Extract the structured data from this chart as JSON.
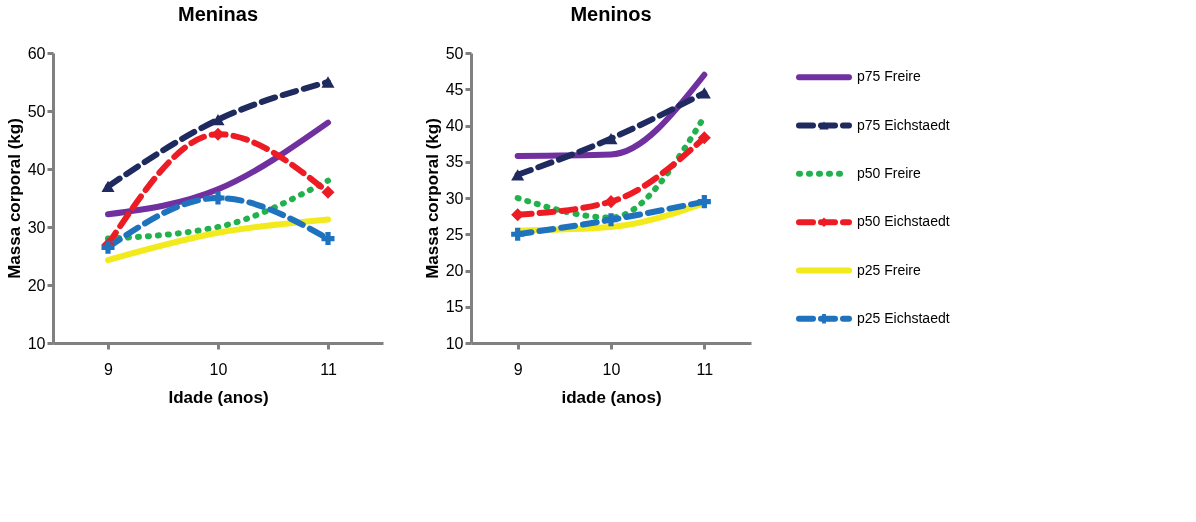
{
  "chart_data": [
    {
      "type": "line",
      "title": "Meninas",
      "xlabel": "Idade (anos)",
      "ylabel": "Massa corporal (kg)",
      "categories": [
        "9",
        "10",
        "11"
      ],
      "ylim": [
        10,
        60
      ],
      "yticks": [
        10,
        20,
        30,
        40,
        50,
        60
      ],
      "grid": false,
      "series": [
        {
          "color": "#7030a0",
          "line_style": "solid",
          "marker": "none",
          "values": [
            32.2,
            36.5,
            48
          ]
        },
        {
          "color": "#1f2a5e",
          "line_style": "dashed",
          "marker": "triangle",
          "values": [
            37,
            48.5,
            55
          ]
        },
        {
          "color": "#22b14c",
          "line_style": "dotted",
          "marker": "none",
          "values": [
            28,
            30,
            38
          ]
        },
        {
          "color": "#ed1c24",
          "line_style": "dashed",
          "marker": "diamond",
          "values": [
            27,
            46,
            36
          ]
        },
        {
          "color": "#f2ea1d",
          "line_style": "solid",
          "marker": "none",
          "values": [
            24.3,
            29,
            31.3
          ]
        },
        {
          "color": "#1f72be",
          "line_style": "dashed",
          "marker": "cross",
          "values": [
            26.5,
            35,
            28
          ]
        }
      ]
    },
    {
      "type": "line",
      "title": "Meninos",
      "xlabel": "idade (anos)",
      "ylabel": "Massa corporal (kg)",
      "categories": [
        "9",
        "10",
        "11"
      ],
      "ylim": [
        10,
        50
      ],
      "yticks": [
        10,
        15,
        20,
        25,
        30,
        35,
        40,
        45,
        50
      ],
      "grid": false,
      "legend": "right",
      "series": [
        {
          "name": "p75 Freire",
          "color": "#7030a0",
          "line_style": "solid",
          "marker": "none",
          "values": [
            35.8,
            36,
            47
          ]
        },
        {
          "name": "p75 Eichstaedt",
          "color": "#1f2a5e",
          "line_style": "dashed",
          "marker": "triangle",
          "values": [
            33.2,
            38.2,
            44.5
          ]
        },
        {
          "name": "p50 Freire",
          "color": "#22b14c",
          "line_style": "dotted",
          "marker": "none",
          "values": [
            30,
            27.3,
            41.2
          ]
        },
        {
          "name": "p50 Eichstaedt",
          "color": "#ed1c24",
          "line_style": "dashed",
          "marker": "diamond",
          "values": [
            27.7,
            29.5,
            38.3
          ]
        },
        {
          "name": "p25 Freire",
          "color": "#f2ea1d",
          "line_style": "solid",
          "marker": "none",
          "values": [
            25.5,
            26,
            29.3
          ]
        },
        {
          "name": "p25 Eichstaedt",
          "color": "#1f72be",
          "line_style": "dashed",
          "marker": "cross",
          "values": [
            25,
            27,
            29.5
          ]
        }
      ]
    }
  ]
}
